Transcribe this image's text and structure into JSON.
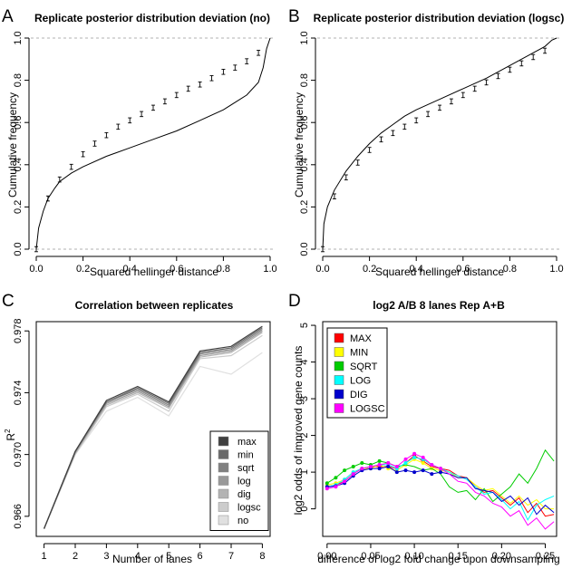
{
  "panel_labels": [
    "A",
    "B",
    "C",
    "D"
  ],
  "colors": {
    "max": "#404040",
    "min": "#6a6a6a",
    "sqrt": "#808080",
    "log": "#999999",
    "dig": "#b3b3b3",
    "logsc": "#cccccc",
    "no": "#e0e0e0",
    "MAX": "#ff0000",
    "MIN": "#ffff00",
    "SQRT": "#00cc00",
    "LOG": "#00ffff",
    "DIG": "#0000cc",
    "LOGSC": "#ff00ff"
  },
  "chart_data": [
    {
      "id": "A",
      "type": "line",
      "title": "Replicate posterior distribution deviation (no)",
      "xlabel": "Squared hellinger distance",
      "ylabel": "Cumulative frequency",
      "xlim": [
        0,
        1
      ],
      "ylim": [
        0,
        1
      ],
      "xticks": [
        0.0,
        0.2,
        0.4,
        0.6,
        0.8,
        1.0
      ],
      "yticks": [
        0.0,
        0.2,
        0.4,
        0.6,
        0.8,
        1.0
      ],
      "tick_labels_x": [
        "0.0",
        "0.2",
        "0.4",
        "0.6",
        "0.8",
        "1.0"
      ],
      "tick_labels_y": [
        "0.0",
        "0.2",
        "0.4",
        "0.6",
        "0.8",
        "1.0"
      ],
      "hlines": [
        0,
        1
      ],
      "curve": {
        "x": [
          0,
          0.01,
          0.03,
          0.05,
          0.08,
          0.1,
          0.15,
          0.2,
          0.3,
          0.4,
          0.5,
          0.6,
          0.7,
          0.8,
          0.9,
          0.95,
          0.97,
          0.985,
          1.0
        ],
        "y": [
          0,
          0.1,
          0.18,
          0.24,
          0.29,
          0.32,
          0.36,
          0.39,
          0.44,
          0.48,
          0.52,
          0.56,
          0.61,
          0.66,
          0.73,
          0.79,
          0.86,
          0.95,
          1.0
        ]
      },
      "error_bars": {
        "x": [
          0.0,
          0.05,
          0.1,
          0.15,
          0.2,
          0.25,
          0.3,
          0.35,
          0.4,
          0.45,
          0.5,
          0.55,
          0.6,
          0.65,
          0.7,
          0.75,
          0.8,
          0.85,
          0.9,
          0.95
        ],
        "y": [
          0.0,
          0.24,
          0.33,
          0.39,
          0.45,
          0.5,
          0.54,
          0.58,
          0.61,
          0.64,
          0.67,
          0.7,
          0.73,
          0.76,
          0.78,
          0.81,
          0.84,
          0.86,
          0.89,
          0.93
        ],
        "err": [
          0.012,
          0.012,
          0.012,
          0.012,
          0.012,
          0.012,
          0.012,
          0.012,
          0.012,
          0.012,
          0.012,
          0.012,
          0.012,
          0.012,
          0.012,
          0.012,
          0.012,
          0.012,
          0.012,
          0.012
        ]
      }
    },
    {
      "id": "B",
      "type": "line",
      "title": "Replicate posterior distribution deviation (logsc)",
      "xlabel": "Squared hellinger distance",
      "ylabel": "Cumulative frequency",
      "xlim": [
        0,
        1
      ],
      "ylim": [
        0,
        1
      ],
      "xticks": [
        0.0,
        0.2,
        0.4,
        0.6,
        0.8,
        1.0
      ],
      "yticks": [
        0.0,
        0.2,
        0.4,
        0.6,
        0.8,
        1.0
      ],
      "tick_labels_x": [
        "0.0",
        "0.2",
        "0.4",
        "0.6",
        "0.8",
        "1.0"
      ],
      "tick_labels_y": [
        "0.0",
        "0.2",
        "0.4",
        "0.6",
        "0.8",
        "1.0"
      ],
      "hlines": [
        0,
        1
      ],
      "curve": {
        "x": [
          0,
          0.005,
          0.02,
          0.05,
          0.1,
          0.15,
          0.2,
          0.25,
          0.3,
          0.35,
          0.4,
          0.5,
          0.6,
          0.7,
          0.8,
          0.9,
          0.95,
          0.98,
          1.0
        ],
        "y": [
          0,
          0.12,
          0.2,
          0.28,
          0.37,
          0.44,
          0.5,
          0.55,
          0.59,
          0.63,
          0.66,
          0.71,
          0.76,
          0.81,
          0.87,
          0.93,
          0.96,
          0.99,
          1.0
        ]
      },
      "error_bars": {
        "x": [
          0.0,
          0.05,
          0.1,
          0.15,
          0.2,
          0.25,
          0.3,
          0.35,
          0.4,
          0.45,
          0.5,
          0.55,
          0.6,
          0.65,
          0.7,
          0.75,
          0.8,
          0.85,
          0.9,
          0.95
        ],
        "y": [
          0.0,
          0.25,
          0.34,
          0.41,
          0.47,
          0.52,
          0.55,
          0.58,
          0.61,
          0.64,
          0.67,
          0.7,
          0.73,
          0.76,
          0.79,
          0.82,
          0.85,
          0.88,
          0.91,
          0.94
        ],
        "err": [
          0.012,
          0.012,
          0.012,
          0.012,
          0.012,
          0.012,
          0.012,
          0.012,
          0.012,
          0.012,
          0.012,
          0.012,
          0.012,
          0.012,
          0.012,
          0.012,
          0.012,
          0.012,
          0.012,
          0.012
        ]
      }
    },
    {
      "id": "C",
      "type": "line",
      "title": "Correlation between replicates",
      "xlabel": "Number of lanes",
      "ylabel": "R",
      "ylabel_sup": "2",
      "xlim": [
        0.75,
        8.25
      ],
      "ylim": [
        0.9647,
        0.9786
      ],
      "xticks": [
        1,
        2,
        3,
        4,
        5,
        6,
        7,
        8
      ],
      "yticks": [
        0.966,
        0.97,
        0.974,
        0.978
      ],
      "tick_labels_x": [
        "1",
        "2",
        "3",
        "4",
        "5",
        "6",
        "7",
        "8"
      ],
      "tick_labels_y": [
        "0.966",
        "0.970",
        "0.974",
        "0.978"
      ],
      "categories": [
        1,
        2,
        3,
        4,
        5,
        6,
        7,
        8
      ],
      "series": [
        {
          "name": "max",
          "color_key": "max",
          "values": [
            0.9652,
            0.9702,
            0.9735,
            0.9744,
            0.9734,
            0.9767,
            0.977,
            0.9783
          ]
        },
        {
          "name": "min",
          "color_key": "min",
          "values": [
            0.9652,
            0.9702,
            0.9734,
            0.9743,
            0.9733,
            0.9766,
            0.9769,
            0.9782
          ]
        },
        {
          "name": "sqrt",
          "color_key": "sqrt",
          "values": [
            0.9652,
            0.9702,
            0.9734,
            0.9742,
            0.9732,
            0.9765,
            0.9768,
            0.9781
          ]
        },
        {
          "name": "log",
          "color_key": "log",
          "values": [
            0.9652,
            0.9701,
            0.9733,
            0.9741,
            0.9731,
            0.9764,
            0.9767,
            0.978
          ]
        },
        {
          "name": "dig",
          "color_key": "dig",
          "values": [
            0.9652,
            0.9701,
            0.9732,
            0.974,
            0.973,
            0.9763,
            0.9766,
            0.9779
          ]
        },
        {
          "name": "logsc",
          "color_key": "logsc",
          "values": [
            0.9652,
            0.97,
            0.9731,
            0.9739,
            0.9728,
            0.9762,
            0.9764,
            0.9777
          ]
        },
        {
          "name": "no",
          "color_key": "no",
          "values": [
            0.9652,
            0.97,
            0.9728,
            0.9737,
            0.9725,
            0.9757,
            0.9752,
            0.9766
          ]
        }
      ],
      "legend": [
        "max",
        "min",
        "sqrt",
        "log",
        "dig",
        "logsc",
        "no"
      ],
      "legend_position": "bottom-right"
    },
    {
      "id": "D",
      "type": "line",
      "title": "log2 A/B 8 lanes Rep A+B",
      "xlabel": "difference of log2 fold change upon downsampling",
      "ylabel": "log2 odds of improved gene counts",
      "xlim": [
        -0.005,
        0.263
      ],
      "ylim": [
        -0.75,
        5.1
      ],
      "xticks": [
        0.0,
        0.05,
        0.1,
        0.15,
        0.2,
        0.25
      ],
      "yticks": [
        0,
        1,
        2,
        3,
        4,
        5
      ],
      "tick_labels_x": [
        "0.00",
        "0.05",
        "0.10",
        "0.15",
        "0.20",
        "0.25"
      ],
      "tick_labels_y": [
        "0",
        "1",
        "2",
        "3",
        "4",
        "5"
      ],
      "series": [
        {
          "name": "MAX",
          "color_key": "MAX",
          "x": [
            0,
            0.01,
            0.02,
            0.03,
            0.04,
            0.05,
            0.06,
            0.07,
            0.08,
            0.09,
            0.1,
            0.11,
            0.12,
            0.13,
            0.14,
            0.15,
            0.16,
            0.17,
            0.18,
            0.19,
            0.2,
            0.21,
            0.22,
            0.23,
            0.24,
            0.25,
            0.26
          ],
          "y": [
            0.6,
            0.65,
            0.75,
            0.95,
            1.1,
            1.15,
            1.15,
            1.15,
            1.1,
            1.25,
            1.45,
            1.3,
            1.15,
            1.1,
            1.05,
            0.9,
            0.85,
            0.6,
            0.45,
            0.5,
            0.3,
            0.1,
            0.3,
            -0.1,
            0.15,
            -0.2,
            -0.15
          ],
          "marker_until": 0.135
        },
        {
          "name": "MIN",
          "color_key": "MIN",
          "x": [
            0,
            0.01,
            0.02,
            0.03,
            0.04,
            0.05,
            0.06,
            0.07,
            0.08,
            0.09,
            0.1,
            0.11,
            0.12,
            0.13,
            0.14,
            0.15,
            0.16,
            0.17,
            0.18,
            0.19,
            0.2,
            0.21,
            0.22,
            0.23,
            0.24,
            0.25,
            0.26
          ],
          "y": [
            0.65,
            0.7,
            0.8,
            1.0,
            1.1,
            1.1,
            1.2,
            1.1,
            1.05,
            1.2,
            1.35,
            1.25,
            1.1,
            1.05,
            1.0,
            0.85,
            0.85,
            0.65,
            0.5,
            0.55,
            0.35,
            0.15,
            0.35,
            0.1,
            0.25,
            0.0,
            0.0
          ],
          "marker_until": 0.135
        },
        {
          "name": "SQRT",
          "color_key": "SQRT",
          "x": [
            0,
            0.01,
            0.02,
            0.03,
            0.04,
            0.05,
            0.06,
            0.07,
            0.08,
            0.09,
            0.1,
            0.11,
            0.12,
            0.13,
            0.14,
            0.15,
            0.16,
            0.17,
            0.18,
            0.19,
            0.2,
            0.21,
            0.22,
            0.23,
            0.24,
            0.25,
            0.26
          ],
          "y": [
            0.7,
            0.85,
            1.05,
            1.15,
            1.25,
            1.2,
            1.3,
            1.25,
            1.15,
            1.2,
            1.15,
            1.05,
            1.1,
            0.95,
            0.6,
            0.45,
            0.5,
            0.25,
            0.55,
            0.2,
            0.4,
            0.6,
            0.95,
            0.7,
            1.1,
            1.6,
            1.3
          ],
          "marker_until": 0.07
        },
        {
          "name": "LOG",
          "color_key": "LOG",
          "x": [
            0,
            0.01,
            0.02,
            0.03,
            0.04,
            0.05,
            0.06,
            0.07,
            0.08,
            0.09,
            0.1,
            0.11,
            0.12,
            0.13,
            0.14,
            0.15,
            0.16,
            0.17,
            0.18,
            0.19,
            0.2,
            0.21,
            0.22,
            0.23,
            0.24,
            0.25,
            0.26
          ],
          "y": [
            0.6,
            0.65,
            0.8,
            1.0,
            1.1,
            1.15,
            1.2,
            1.2,
            1.1,
            1.25,
            1.4,
            1.35,
            1.2,
            1.1,
            1.0,
            0.9,
            0.8,
            0.6,
            0.4,
            0.45,
            0.25,
            0.0,
            0.2,
            -0.3,
            0.1,
            0.25,
            0.35
          ],
          "marker_until": 0.135
        },
        {
          "name": "DIG",
          "color_key": "DIG",
          "x": [
            0,
            0.01,
            0.02,
            0.03,
            0.04,
            0.05,
            0.06,
            0.07,
            0.08,
            0.09,
            0.1,
            0.11,
            0.12,
            0.13,
            0.14,
            0.15,
            0.16,
            0.17,
            0.18,
            0.19,
            0.2,
            0.21,
            0.22,
            0.23,
            0.24,
            0.25,
            0.26
          ],
          "y": [
            0.6,
            0.62,
            0.7,
            0.9,
            1.05,
            1.1,
            1.1,
            1.15,
            1.0,
            1.05,
            1.0,
            1.05,
            0.95,
            1.0,
            0.95,
            0.85,
            0.85,
            0.55,
            0.5,
            0.45,
            0.2,
            0.35,
            0.1,
            0.3,
            -0.15,
            0.1,
            -0.1
          ],
          "marker_until": 0.135
        },
        {
          "name": "LOGSC",
          "color_key": "LOGSC",
          "x": [
            0,
            0.01,
            0.02,
            0.03,
            0.04,
            0.05,
            0.06,
            0.07,
            0.08,
            0.09,
            0.1,
            0.11,
            0.12,
            0.13,
            0.14,
            0.15,
            0.16,
            0.17,
            0.18,
            0.19,
            0.2,
            0.21,
            0.22,
            0.23,
            0.24,
            0.25,
            0.26
          ],
          "y": [
            0.55,
            0.6,
            0.75,
            0.95,
            1.1,
            1.15,
            1.2,
            1.25,
            1.15,
            1.35,
            1.5,
            1.4,
            1.2,
            1.1,
            0.95,
            0.75,
            0.7,
            0.45,
            0.35,
            0.15,
            0.05,
            -0.2,
            -0.05,
            -0.45,
            -0.25,
            -0.55,
            -0.35
          ],
          "marker_until": 0.135
        }
      ],
      "legend": [
        "MAX",
        "MIN",
        "SQRT",
        "LOG",
        "DIG",
        "LOGSC"
      ],
      "legend_position": "top-left"
    }
  ]
}
